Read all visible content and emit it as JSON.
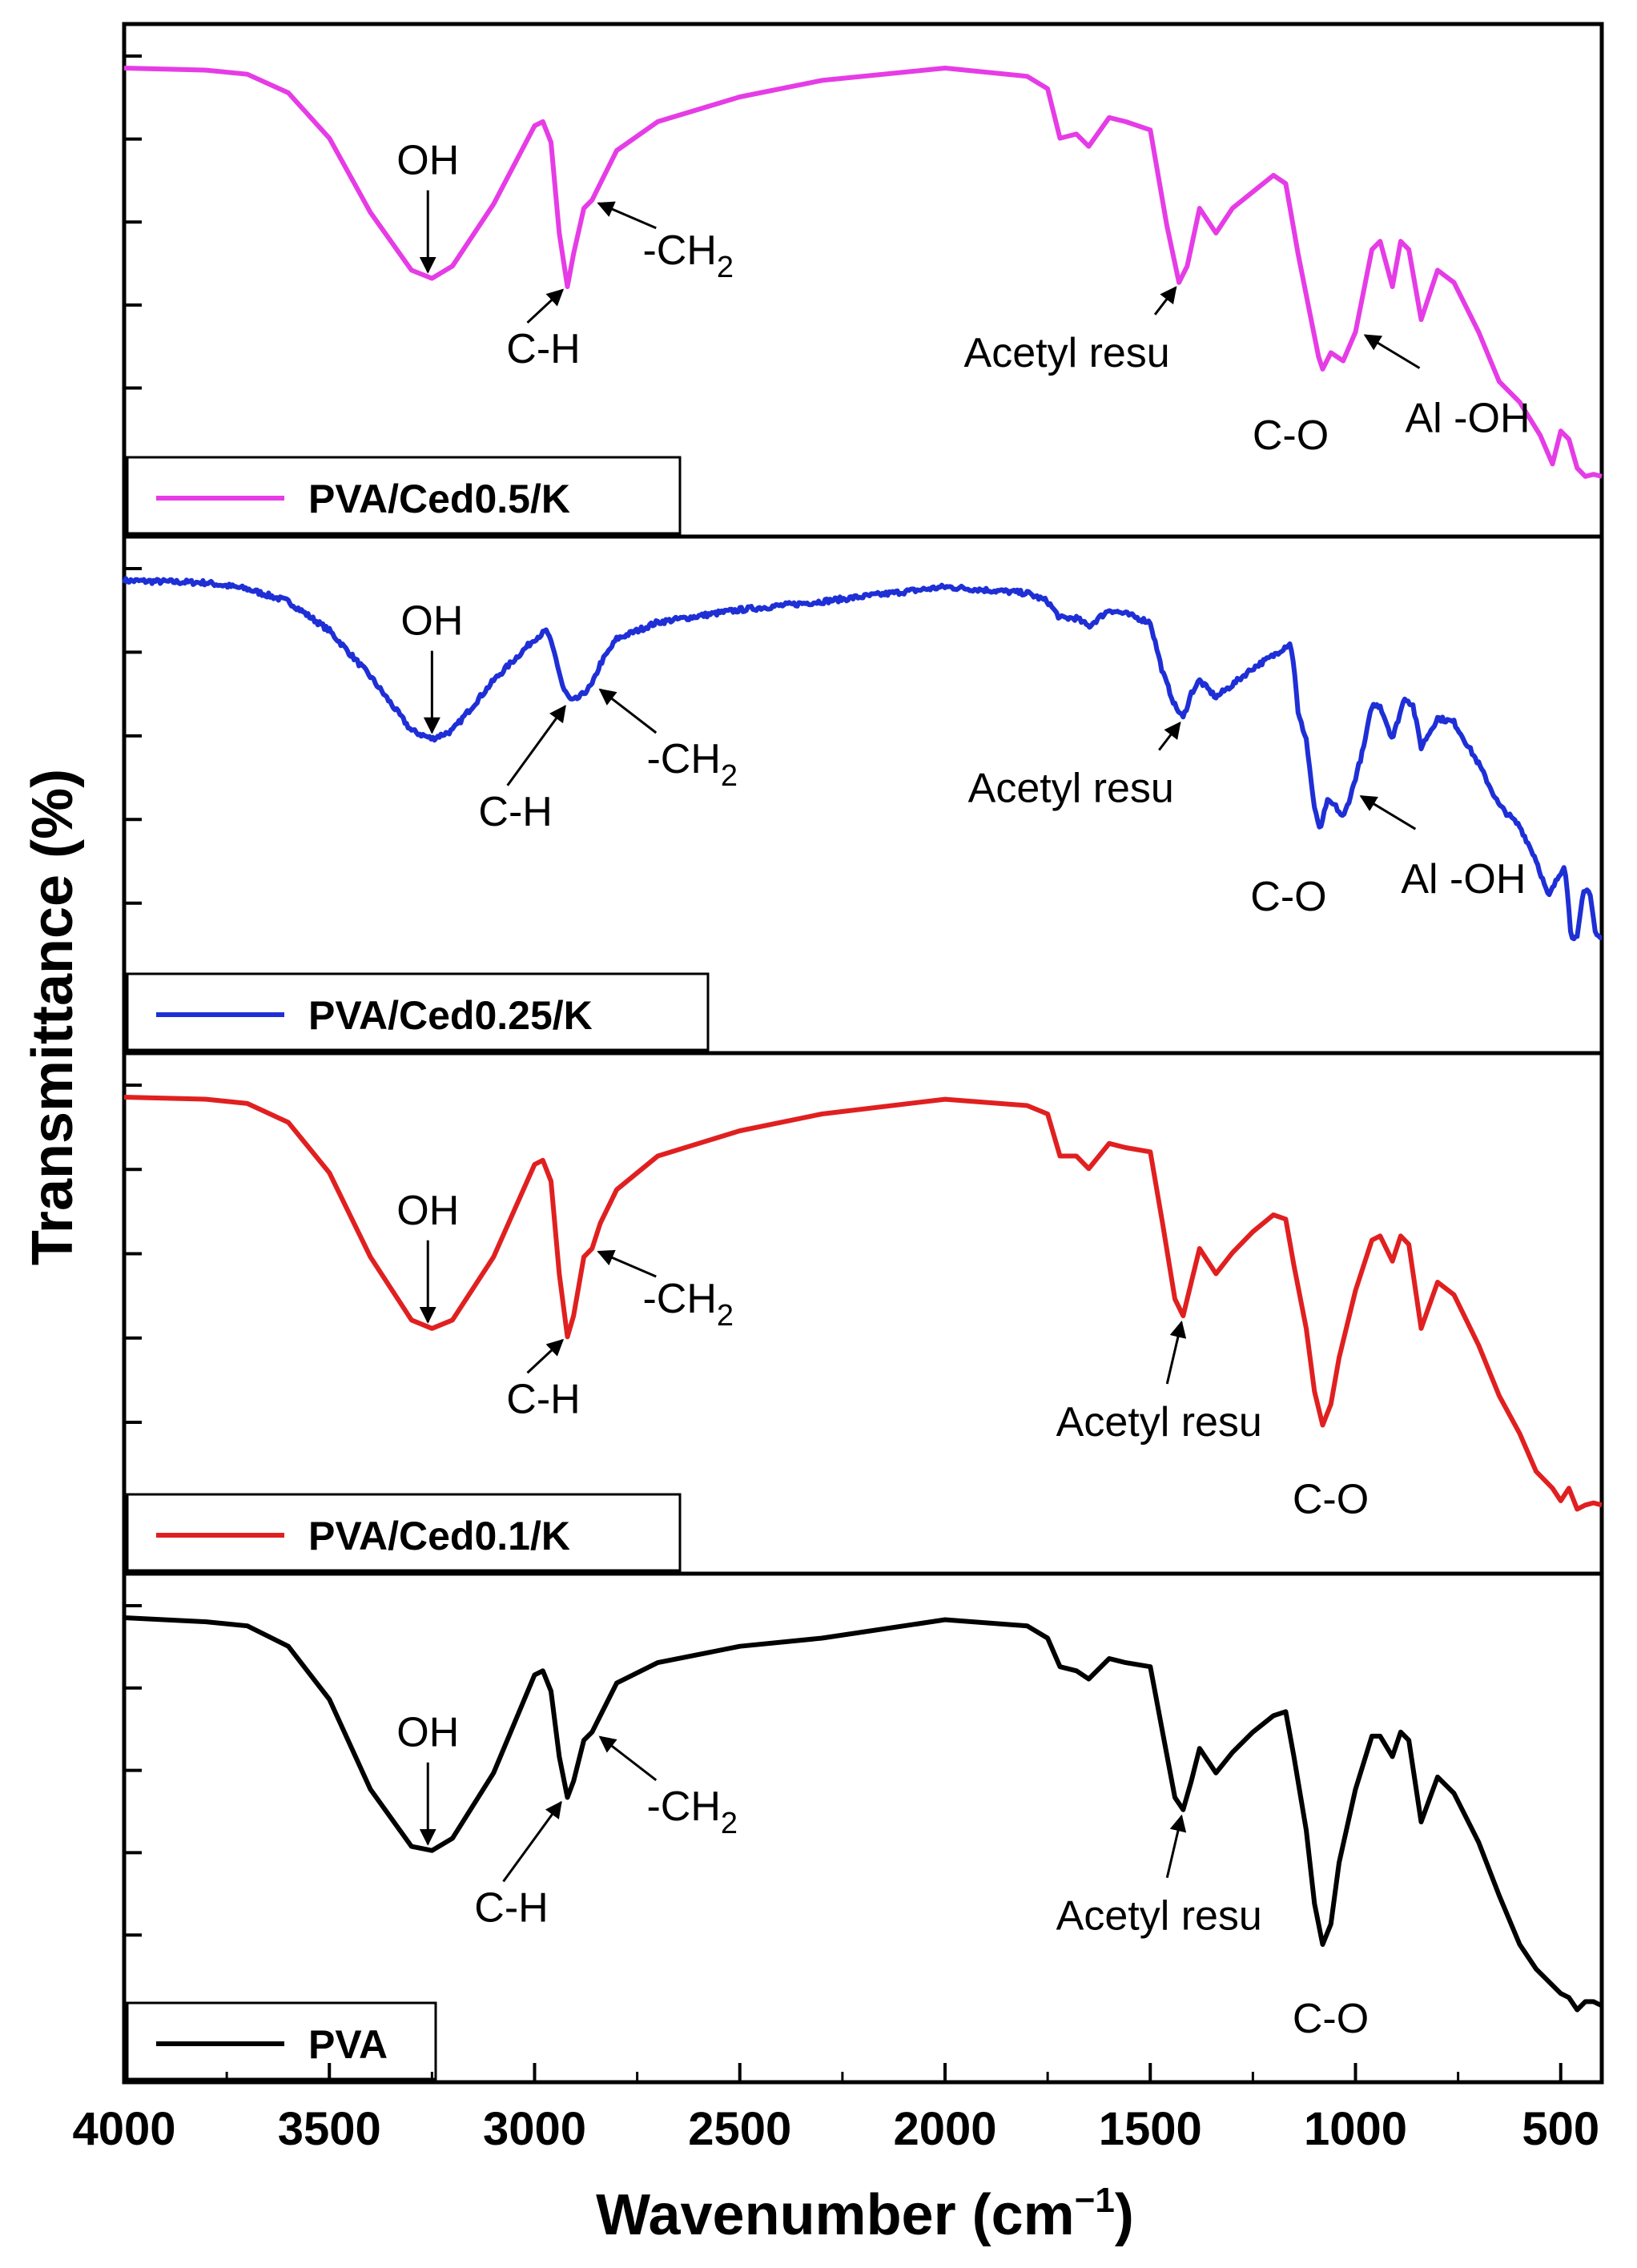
{
  "chart_data": {
    "type": "line",
    "xlabel": "Wavenumber (cm",
    "xlabel_sup": "−1",
    "xlabel_close": ")",
    "ylabel": "Transmittance (%)",
    "xlim": [
      4000,
      400
    ],
    "x_reversed": true,
    "xticks": [
      4000,
      3500,
      3000,
      2500,
      2000,
      1500,
      1000,
      500
    ],
    "y_scale": "relative, stacked panels",
    "legend_position": "bottom-left of each panel",
    "panels": [
      {
        "name": "PVA/Ced0.5/K",
        "color": "#e63ce6",
        "noisy": false,
        "points": [
          [
            4000,
            1.0
          ],
          [
            3800,
            0.995
          ],
          [
            3700,
            0.985
          ],
          [
            3600,
            0.94
          ],
          [
            3500,
            0.83
          ],
          [
            3400,
            0.65
          ],
          [
            3300,
            0.51
          ],
          [
            3250,
            0.49
          ],
          [
            3200,
            0.52
          ],
          [
            3100,
            0.67
          ],
          [
            3000,
            0.86
          ],
          [
            2980,
            0.87
          ],
          [
            2960,
            0.82
          ],
          [
            2940,
            0.6
          ],
          [
            2920,
            0.47
          ],
          [
            2905,
            0.55
          ],
          [
            2880,
            0.66
          ],
          [
            2860,
            0.68
          ],
          [
            2840,
            0.72
          ],
          [
            2800,
            0.8
          ],
          [
            2700,
            0.87
          ],
          [
            2500,
            0.93
          ],
          [
            2300,
            0.97
          ],
          [
            2000,
            1.0
          ],
          [
            1800,
            0.98
          ],
          [
            1750,
            0.95
          ],
          [
            1720,
            0.83
          ],
          [
            1680,
            0.84
          ],
          [
            1650,
            0.81
          ],
          [
            1600,
            0.88
          ],
          [
            1560,
            0.87
          ],
          [
            1500,
            0.85
          ],
          [
            1460,
            0.62
          ],
          [
            1430,
            0.48
          ],
          [
            1410,
            0.52
          ],
          [
            1380,
            0.66
          ],
          [
            1340,
            0.6
          ],
          [
            1300,
            0.66
          ],
          [
            1250,
            0.7
          ],
          [
            1200,
            0.74
          ],
          [
            1170,
            0.72
          ],
          [
            1140,
            0.55
          ],
          [
            1110,
            0.4
          ],
          [
            1090,
            0.3
          ],
          [
            1080,
            0.27
          ],
          [
            1060,
            0.31
          ],
          [
            1030,
            0.29
          ],
          [
            1000,
            0.36
          ],
          [
            960,
            0.56
          ],
          [
            940,
            0.58
          ],
          [
            910,
            0.47
          ],
          [
            890,
            0.58
          ],
          [
            870,
            0.56
          ],
          [
            840,
            0.39
          ],
          [
            800,
            0.51
          ],
          [
            760,
            0.48
          ],
          [
            700,
            0.36
          ],
          [
            650,
            0.24
          ],
          [
            600,
            0.19
          ],
          [
            550,
            0.11
          ],
          [
            520,
            0.04
          ],
          [
            500,
            0.12
          ],
          [
            480,
            0.1
          ],
          [
            460,
            0.03
          ],
          [
            440,
            0.01
          ],
          [
            420,
            0.015
          ],
          [
            400,
            0.01
          ]
        ],
        "annotations": [
          {
            "label": "OH",
            "x": 3260,
            "y": 0.49
          },
          {
            "label": "C-H",
            "x": 2920,
            "y": 0.47
          },
          {
            "label": "-CH",
            "sub": "2",
            "x": 2860,
            "y": 0.68
          },
          {
            "label": "Acetyl resu",
            "x": 1430,
            "y": 0.48
          },
          {
            "label": "C-O",
            "x": 1080,
            "y": 0.27
          },
          {
            "label": "Al -OH",
            "x": 1000,
            "y": 0.36
          }
        ]
      },
      {
        "name": "PVA/Ced0.25/K",
        "color": "#1f2fd6",
        "noisy": true,
        "points": [
          [
            4000,
            1.0
          ],
          [
            3800,
            0.995
          ],
          [
            3700,
            0.98
          ],
          [
            3600,
            0.95
          ],
          [
            3500,
            0.88
          ],
          [
            3400,
            0.77
          ],
          [
            3300,
            0.64
          ],
          [
            3250,
            0.62
          ],
          [
            3200,
            0.64
          ],
          [
            3100,
            0.76
          ],
          [
            3000,
            0.86
          ],
          [
            2970,
            0.88
          ],
          [
            2950,
            0.82
          ],
          [
            2930,
            0.74
          ],
          [
            2910,
            0.71
          ],
          [
            2890,
            0.72
          ],
          [
            2860,
            0.75
          ],
          [
            2840,
            0.8
          ],
          [
            2800,
            0.86
          ],
          [
            2700,
            0.9
          ],
          [
            2500,
            0.93
          ],
          [
            2300,
            0.95
          ],
          [
            2000,
            0.985
          ],
          [
            1800,
            0.97
          ],
          [
            1750,
            0.95
          ],
          [
            1720,
            0.91
          ],
          [
            1680,
            0.91
          ],
          [
            1650,
            0.89
          ],
          [
            1600,
            0.93
          ],
          [
            1560,
            0.92
          ],
          [
            1500,
            0.9
          ],
          [
            1470,
            0.78
          ],
          [
            1440,
            0.7
          ],
          [
            1420,
            0.67
          ],
          [
            1400,
            0.73
          ],
          [
            1380,
            0.76
          ],
          [
            1340,
            0.72
          ],
          [
            1300,
            0.75
          ],
          [
            1250,
            0.79
          ],
          [
            1200,
            0.82
          ],
          [
            1160,
            0.85
          ],
          [
            1150,
            0.8
          ],
          [
            1140,
            0.68
          ],
          [
            1120,
            0.62
          ],
          [
            1100,
            0.45
          ],
          [
            1085,
            0.4
          ],
          [
            1070,
            0.47
          ],
          [
            1050,
            0.46
          ],
          [
            1030,
            0.43
          ],
          [
            1010,
            0.49
          ],
          [
            980,
            0.6
          ],
          [
            960,
            0.7
          ],
          [
            940,
            0.7
          ],
          [
            910,
            0.62
          ],
          [
            880,
            0.72
          ],
          [
            860,
            0.7
          ],
          [
            840,
            0.6
          ],
          [
            800,
            0.67
          ],
          [
            760,
            0.66
          ],
          [
            700,
            0.56
          ],
          [
            650,
            0.46
          ],
          [
            600,
            0.41
          ],
          [
            560,
            0.33
          ],
          [
            530,
            0.24
          ],
          [
            510,
            0.28
          ],
          [
            490,
            0.32
          ],
          [
            475,
            0.15
          ],
          [
            460,
            0.14
          ],
          [
            445,
            0.25
          ],
          [
            430,
            0.26
          ],
          [
            415,
            0.15
          ],
          [
            400,
            0.14
          ]
        ],
        "annotations": [
          {
            "label": "OH",
            "x": 3250,
            "y": 0.62
          },
          {
            "label": "C-H",
            "x": 2910,
            "y": 0.71
          },
          {
            "label": "-CH",
            "sub": "2",
            "x": 2860,
            "y": 0.75
          },
          {
            "label": "Acetyl resu",
            "x": 1420,
            "y": 0.67
          },
          {
            "label": "C-O",
            "x": 1085,
            "y": 0.4
          },
          {
            "label": "Al -OH",
            "x": 1010,
            "y": 0.49
          }
        ]
      },
      {
        "name": "PVA/Ced0.1/K",
        "color": "#e02020",
        "noisy": false,
        "points": [
          [
            4000,
            1.0
          ],
          [
            3800,
            0.995
          ],
          [
            3700,
            0.985
          ],
          [
            3600,
            0.94
          ],
          [
            3500,
            0.82
          ],
          [
            3400,
            0.62
          ],
          [
            3300,
            0.47
          ],
          [
            3250,
            0.45
          ],
          [
            3200,
            0.47
          ],
          [
            3100,
            0.62
          ],
          [
            3000,
            0.84
          ],
          [
            2980,
            0.85
          ],
          [
            2960,
            0.8
          ],
          [
            2940,
            0.58
          ],
          [
            2920,
            0.43
          ],
          [
            2905,
            0.48
          ],
          [
            2880,
            0.62
          ],
          [
            2860,
            0.64
          ],
          [
            2840,
            0.7
          ],
          [
            2800,
            0.78
          ],
          [
            2700,
            0.86
          ],
          [
            2500,
            0.92
          ],
          [
            2300,
            0.96
          ],
          [
            2000,
            0.995
          ],
          [
            1800,
            0.98
          ],
          [
            1750,
            0.96
          ],
          [
            1720,
            0.86
          ],
          [
            1680,
            0.86
          ],
          [
            1650,
            0.83
          ],
          [
            1600,
            0.89
          ],
          [
            1560,
            0.88
          ],
          [
            1500,
            0.87
          ],
          [
            1470,
            0.7
          ],
          [
            1440,
            0.52
          ],
          [
            1420,
            0.48
          ],
          [
            1400,
            0.56
          ],
          [
            1380,
            0.64
          ],
          [
            1340,
            0.58
          ],
          [
            1300,
            0.63
          ],
          [
            1250,
            0.68
          ],
          [
            1200,
            0.72
          ],
          [
            1170,
            0.71
          ],
          [
            1150,
            0.6
          ],
          [
            1120,
            0.45
          ],
          [
            1100,
            0.3
          ],
          [
            1080,
            0.22
          ],
          [
            1060,
            0.27
          ],
          [
            1040,
            0.38
          ],
          [
            1000,
            0.54
          ],
          [
            960,
            0.66
          ],
          [
            940,
            0.67
          ],
          [
            910,
            0.61
          ],
          [
            890,
            0.67
          ],
          [
            870,
            0.65
          ],
          [
            840,
            0.45
          ],
          [
            800,
            0.56
          ],
          [
            760,
            0.53
          ],
          [
            700,
            0.41
          ],
          [
            650,
            0.29
          ],
          [
            600,
            0.2
          ],
          [
            560,
            0.11
          ],
          [
            520,
            0.07
          ],
          [
            500,
            0.04
          ],
          [
            480,
            0.07
          ],
          [
            460,
            0.02
          ],
          [
            440,
            0.03
          ],
          [
            420,
            0.035
          ],
          [
            400,
            0.03
          ]
        ],
        "annotations": [
          {
            "label": "OH",
            "x": 3260,
            "y": 0.45
          },
          {
            "label": "C-H",
            "x": 2920,
            "y": 0.43
          },
          {
            "label": "-CH",
            "sub": "2",
            "x": 2860,
            "y": 0.64
          },
          {
            "label": "Acetyl resu",
            "x": 1420,
            "y": 0.48
          },
          {
            "label": "C-O",
            "x": 1080,
            "y": 0.22
          }
        ]
      },
      {
        "name": "PVA",
        "color": "#000000",
        "noisy": false,
        "points": [
          [
            4000,
            1.0
          ],
          [
            3800,
            0.99
          ],
          [
            3700,
            0.98
          ],
          [
            3600,
            0.93
          ],
          [
            3500,
            0.8
          ],
          [
            3400,
            0.58
          ],
          [
            3300,
            0.44
          ],
          [
            3250,
            0.43
          ],
          [
            3200,
            0.46
          ],
          [
            3100,
            0.62
          ],
          [
            3000,
            0.86
          ],
          [
            2980,
            0.87
          ],
          [
            2960,
            0.82
          ],
          [
            2940,
            0.66
          ],
          [
            2920,
            0.56
          ],
          [
            2905,
            0.6
          ],
          [
            2880,
            0.7
          ],
          [
            2860,
            0.72
          ],
          [
            2840,
            0.76
          ],
          [
            2800,
            0.84
          ],
          [
            2700,
            0.89
          ],
          [
            2500,
            0.93
          ],
          [
            2300,
            0.95
          ],
          [
            2000,
            0.995
          ],
          [
            1800,
            0.98
          ],
          [
            1750,
            0.95
          ],
          [
            1720,
            0.88
          ],
          [
            1680,
            0.87
          ],
          [
            1650,
            0.85
          ],
          [
            1600,
            0.9
          ],
          [
            1560,
            0.89
          ],
          [
            1500,
            0.88
          ],
          [
            1470,
            0.72
          ],
          [
            1440,
            0.56
          ],
          [
            1420,
            0.53
          ],
          [
            1400,
            0.6
          ],
          [
            1380,
            0.68
          ],
          [
            1340,
            0.62
          ],
          [
            1300,
            0.67
          ],
          [
            1250,
            0.72
          ],
          [
            1200,
            0.76
          ],
          [
            1170,
            0.77
          ],
          [
            1150,
            0.66
          ],
          [
            1120,
            0.48
          ],
          [
            1100,
            0.3
          ],
          [
            1080,
            0.2
          ],
          [
            1060,
            0.25
          ],
          [
            1040,
            0.4
          ],
          [
            1000,
            0.58
          ],
          [
            960,
            0.71
          ],
          [
            940,
            0.71
          ],
          [
            910,
            0.66
          ],
          [
            890,
            0.72
          ],
          [
            870,
            0.7
          ],
          [
            840,
            0.5
          ],
          [
            800,
            0.61
          ],
          [
            760,
            0.57
          ],
          [
            700,
            0.45
          ],
          [
            650,
            0.32
          ],
          [
            600,
            0.2
          ],
          [
            560,
            0.14
          ],
          [
            520,
            0.1
          ],
          [
            500,
            0.08
          ],
          [
            480,
            0.07
          ],
          [
            460,
            0.04
          ],
          [
            440,
            0.06
          ],
          [
            420,
            0.06
          ],
          [
            400,
            0.05
          ]
        ],
        "annotations": [
          {
            "label": "OH",
            "x": 3260,
            "y": 0.43
          },
          {
            "label": "C-H",
            "x": 2920,
            "y": 0.56
          },
          {
            "label": "-CH",
            "sub": "2",
            "x": 2860,
            "y": 0.72
          },
          {
            "label": "Acetyl resu",
            "x": 1420,
            "y": 0.53
          },
          {
            "label": "C-O",
            "x": 1080,
            "y": 0.2
          }
        ]
      }
    ]
  }
}
